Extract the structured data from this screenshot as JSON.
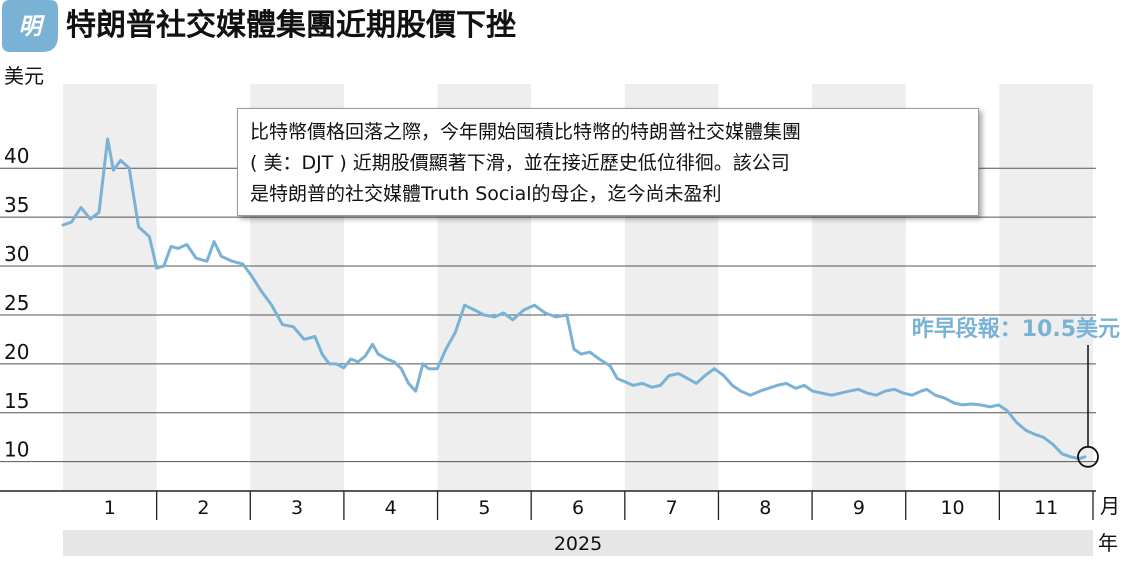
{
  "header": {
    "logo_text": "明",
    "title": "特朗普社交媒體集團近期股價下挫"
  },
  "colors": {
    "accent": "#7ab2d6",
    "line": "#7ab2d6",
    "band_shade": "#eeeeee",
    "year_bar": "#e6e6e6",
    "text": "#111111"
  },
  "callout": {
    "lines": [
      "比特幣價格回落之際，今年開始囤積比特幣的特朗普社交媒體集團",
      "( 美：DJT ) 近期股價顯著下滑，並在接近歷史低位徘徊。該公司",
      "是特朗普的社交媒體Truth Social的母企，迄今尚未盈利"
    ]
  },
  "annotation": {
    "text": "昨早段報：10.5美元",
    "value": 10.5
  },
  "chart_data": {
    "type": "line",
    "title": "特朗普社交媒體集團近期股價下挫",
    "ylabel": "美元",
    "xlabel": "月",
    "year_label": "2025",
    "year_unit": "年",
    "ylim": [
      7,
      48
    ],
    "yticks": [
      10,
      15,
      20,
      25,
      30,
      35,
      40
    ],
    "months": [
      "1",
      "2",
      "3",
      "4",
      "5",
      "6",
      "7",
      "8",
      "9",
      "10",
      "11"
    ],
    "grid": "alternating month bands",
    "series": [
      {
        "values": [
          [
            0.0,
            34.2
          ],
          [
            0.12,
            34.5
          ],
          [
            0.25,
            36.0
          ],
          [
            0.38,
            34.8
          ],
          [
            0.5,
            35.5
          ],
          [
            0.62,
            43.0
          ],
          [
            0.7,
            39.8
          ],
          [
            0.8,
            40.8
          ],
          [
            0.92,
            40.0
          ],
          [
            1.05,
            34.0
          ],
          [
            1.2,
            33.0
          ],
          [
            1.3,
            29.8
          ],
          [
            1.4,
            30.0
          ],
          [
            1.5,
            32.0
          ],
          [
            1.6,
            31.8
          ],
          [
            1.72,
            32.2
          ],
          [
            1.85,
            30.8
          ],
          [
            2.0,
            30.5
          ],
          [
            2.1,
            32.5
          ],
          [
            2.2,
            31.0
          ],
          [
            2.35,
            30.5
          ],
          [
            2.5,
            30.2
          ],
          [
            2.62,
            29.0
          ],
          [
            2.75,
            27.5
          ],
          [
            2.9,
            26.0
          ],
          [
            3.05,
            24.0
          ],
          [
            3.2,
            23.8
          ],
          [
            3.35,
            22.5
          ],
          [
            3.5,
            22.8
          ],
          [
            3.6,
            21.0
          ],
          [
            3.7,
            20.0
          ],
          [
            3.8,
            20.0
          ],
          [
            3.9,
            19.6
          ],
          [
            4.0,
            20.5
          ],
          [
            4.1,
            20.2
          ],
          [
            4.2,
            20.8
          ],
          [
            4.3,
            22.0
          ],
          [
            4.38,
            21.0
          ],
          [
            4.5,
            20.5
          ],
          [
            4.6,
            20.2
          ],
          [
            4.7,
            19.5
          ],
          [
            4.8,
            18.0
          ],
          [
            4.9,
            17.2
          ],
          [
            5.0,
            20.0
          ],
          [
            5.08,
            19.5
          ],
          [
            5.2,
            19.5
          ],
          [
            5.32,
            21.5
          ],
          [
            5.45,
            23.2
          ],
          [
            5.58,
            26.0
          ],
          [
            5.72,
            25.5
          ],
          [
            5.85,
            25.0
          ],
          [
            6.0,
            24.8
          ],
          [
            6.12,
            25.2
          ],
          [
            6.25,
            24.5
          ],
          [
            6.4,
            25.5
          ],
          [
            6.55,
            26.0
          ],
          [
            6.7,
            25.2
          ],
          [
            6.85,
            24.8
          ],
          [
            7.0,
            25.0
          ],
          [
            7.1,
            21.5
          ],
          [
            7.2,
            21.0
          ],
          [
            7.32,
            21.2
          ],
          [
            7.45,
            20.5
          ],
          [
            7.6,
            19.8
          ],
          [
            7.7,
            18.5
          ],
          [
            7.8,
            18.2
          ],
          [
            7.92,
            17.8
          ],
          [
            8.05,
            18.0
          ],
          [
            8.18,
            17.6
          ],
          [
            8.3,
            17.8
          ],
          [
            8.42,
            18.8
          ],
          [
            8.55,
            19.0
          ],
          [
            8.68,
            18.5
          ],
          [
            8.8,
            18.0
          ],
          [
            8.92,
            18.8
          ],
          [
            9.05,
            19.5
          ],
          [
            9.18,
            18.8
          ],
          [
            9.3,
            17.8
          ],
          [
            9.42,
            17.2
          ],
          [
            9.55,
            16.8
          ],
          [
            9.68,
            17.2
          ],
          [
            9.8,
            17.5
          ],
          [
            9.92,
            17.8
          ],
          [
            10.05,
            18.0
          ],
          [
            10.18,
            17.5
          ],
          [
            10.3,
            17.8
          ],
          [
            10.42,
            17.2
          ],
          [
            10.55,
            17.0
          ],
          [
            10.68,
            16.8
          ],
          [
            10.8,
            17.0
          ],
          [
            10.92,
            17.2
          ],
          [
            11.05,
            17.4
          ],
          [
            11.18,
            17.0
          ],
          [
            11.3,
            16.8
          ],
          [
            11.42,
            17.2
          ],
          [
            11.55,
            17.4
          ],
          [
            11.68,
            17.0
          ],
          [
            11.8,
            16.8
          ],
          [
            11.92,
            17.2
          ],
          [
            12.0,
            17.4
          ],
          [
            12.12,
            16.8
          ],
          [
            12.25,
            16.5
          ],
          [
            12.38,
            16.0
          ],
          [
            12.5,
            15.8
          ],
          [
            12.62,
            15.9
          ],
          [
            12.75,
            15.8
          ],
          [
            12.88,
            15.6
          ],
          [
            13.0,
            15.8
          ],
          [
            13.12,
            15.2
          ],
          [
            13.25,
            14.0
          ],
          [
            13.38,
            13.2
          ],
          [
            13.5,
            12.8
          ],
          [
            13.62,
            12.5
          ],
          [
            13.75,
            11.8
          ],
          [
            13.88,
            10.8
          ],
          [
            14.0,
            10.5
          ],
          [
            14.12,
            10.3
          ],
          [
            14.2,
            10.5
          ]
        ]
      }
    ]
  }
}
